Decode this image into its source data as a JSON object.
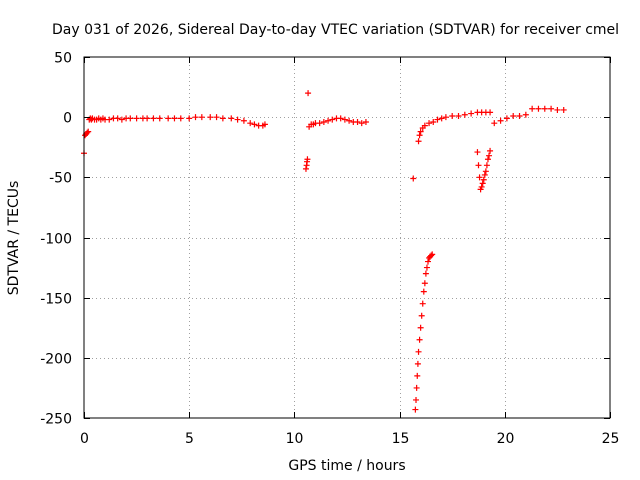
{
  "chart_data": {
    "type": "scatter",
    "title": "Day 031 of 2026, Sidereal Day-to-day VTEC variation (SDTVAR) for receiver cmel",
    "xlabel": "GPS time / hours",
    "ylabel": "SDTVAR / TECUs",
    "xlim": [
      0,
      25
    ],
    "ylim": [
      -250,
      50
    ],
    "xticks": [
      0,
      5,
      10,
      15,
      20,
      25
    ],
    "yticks": [
      50,
      0,
      -50,
      -100,
      -150,
      -200,
      -250
    ],
    "grid": true,
    "marker": "+",
    "color": "#ff0000",
    "series": [
      {
        "name": "SDTVAR",
        "x": [
          0.0,
          0.05,
          0.1,
          0.15,
          0.2,
          0.25,
          0.3,
          0.35,
          0.4,
          0.5,
          0.6,
          0.7,
          0.8,
          0.9,
          1.0,
          1.2,
          1.4,
          1.6,
          1.8,
          2.0,
          2.2,
          2.5,
          2.8,
          3.0,
          3.3,
          3.6,
          4.0,
          4.3,
          4.6,
          5.0,
          5.3,
          5.6,
          6.0,
          6.3,
          6.6,
          7.0,
          7.3,
          7.6,
          7.9,
          8.1,
          8.3,
          8.5,
          8.6,
          10.55,
          10.58,
          10.6,
          10.62,
          10.65,
          10.7,
          10.8,
          10.9,
          11.0,
          11.2,
          11.4,
          11.6,
          11.8,
          12.0,
          12.2,
          12.4,
          12.6,
          12.8,
          13.0,
          13.2,
          13.4,
          15.65,
          15.75,
          15.78,
          15.81,
          15.84,
          15.87,
          15.9,
          15.95,
          16.0,
          16.05,
          16.1,
          16.15,
          16.2,
          16.25,
          16.3,
          16.35,
          16.4,
          16.45,
          16.5,
          16.55,
          15.9,
          15.95,
          16.0,
          16.1,
          16.2,
          16.4,
          16.6,
          16.8,
          17.0,
          17.2,
          17.5,
          17.8,
          18.1,
          18.4,
          18.7,
          18.9,
          19.1,
          19.3,
          19.5,
          19.8,
          20.1,
          20.4,
          20.7,
          21.0,
          21.3,
          21.6,
          21.9,
          22.2,
          22.5,
          22.8,
          18.7,
          18.75,
          18.8,
          18.85,
          18.9,
          18.95,
          19.0,
          19.05,
          19.1,
          19.15,
          19.2,
          19.25,
          19.3
        ],
        "y": [
          -30,
          -15,
          -14,
          -13,
          -12,
          -2,
          -1,
          -2,
          -1,
          -2,
          -2,
          -1,
          -2,
          -1,
          -2,
          -2,
          -1,
          -1,
          -2,
          -1,
          -1,
          -1,
          -1,
          -1,
          -1,
          -1,
          -1,
          -1,
          -1,
          -1,
          0,
          0,
          0,
          0,
          -1,
          -1,
          -2,
          -3,
          -5,
          -6,
          -7,
          -7,
          -6,
          -43,
          -40,
          -37,
          -35,
          20,
          -8,
          -6,
          -6,
          -5,
          -5,
          -4,
          -3,
          -2,
          -1,
          -1,
          -2,
          -3,
          -4,
          -4,
          -5,
          -4,
          -51,
          -243,
          -235,
          -225,
          -215,
          -205,
          -195,
          -185,
          -175,
          -165,
          -155,
          -145,
          -138,
          -130,
          -125,
          -120,
          -117,
          -116,
          -115,
          -114,
          -20,
          -15,
          -12,
          -9,
          -7,
          -5,
          -4,
          -2,
          -1,
          0,
          1,
          1,
          2,
          3,
          4,
          4,
          4,
          4,
          -5,
          -3,
          -1,
          1,
          1,
          2,
          7,
          7,
          7,
          7,
          6,
          6,
          -29,
          -40,
          -50,
          -60,
          -58,
          -55,
          -52,
          -48,
          -45,
          -40,
          -35,
          -32,
          -28
        ]
      }
    ]
  }
}
